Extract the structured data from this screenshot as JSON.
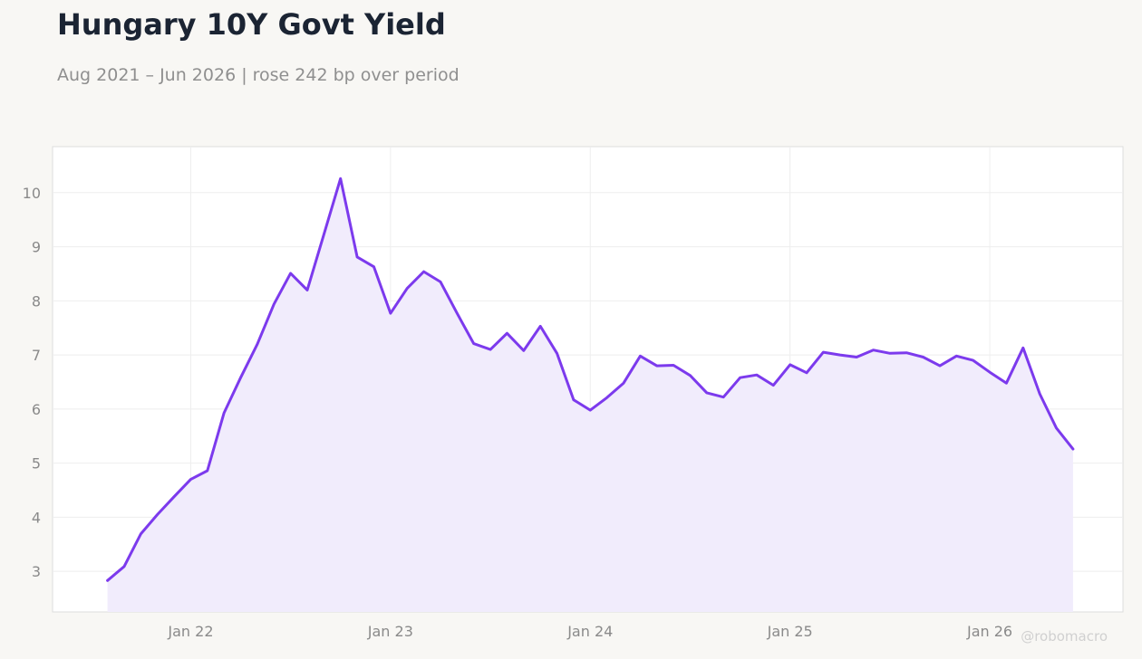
{
  "title": "Hungary 10Y Govt Yield",
  "subtitle": "Aug 2021 – Jun 2026 | rose 242 bp over period",
  "watermark": "@robomacro",
  "colors": {
    "line": "#7c3aed",
    "fill": "#f1ecfc",
    "background": "#f8f7f4",
    "plot_background": "#ffffff",
    "grid": "#eeeeee",
    "title": "#1b2433",
    "muted_text": "#8f8f8f"
  },
  "chart_data": {
    "type": "area",
    "title": "Hungary 10Y Govt Yield",
    "subtitle": "Aug 2021 – Jun 2026 | rose 242 bp over period",
    "xlabel": "",
    "ylabel": "",
    "x_start": "2021-08",
    "x_end": "2026-06",
    "xlim": [
      "2021-05",
      "2026-09"
    ],
    "ylim": [
      2.25,
      10.85
    ],
    "x_ticks": [
      {
        "date": "2022-01",
        "label": "Jan 22"
      },
      {
        "date": "2023-01",
        "label": "Jan 23"
      },
      {
        "date": "2024-01",
        "label": "Jan 24"
      },
      {
        "date": "2025-01",
        "label": "Jan 25"
      },
      {
        "date": "2026-01",
        "label": "Jan 26"
      }
    ],
    "y_ticks": [
      3,
      4,
      5,
      6,
      7,
      8,
      9,
      10
    ],
    "grid": true,
    "legend": "none",
    "series": [
      {
        "x": [
          "2021-08",
          "2021-09",
          "2021-10",
          "2021-11",
          "2021-12",
          "2022-01",
          "2022-02",
          "2022-03",
          "2022-04",
          "2022-05",
          "2022-06",
          "2022-07",
          "2022-08",
          "2022-09",
          "2022-10",
          "2022-11",
          "2022-12",
          "2023-01",
          "2023-02",
          "2023-03",
          "2023-04",
          "2023-05",
          "2023-06",
          "2023-07",
          "2023-08",
          "2023-09",
          "2023-10",
          "2023-11",
          "2023-12",
          "2024-01",
          "2024-02",
          "2024-03",
          "2024-04",
          "2024-05",
          "2024-06",
          "2024-07",
          "2024-08",
          "2024-09",
          "2024-10",
          "2024-11",
          "2024-12",
          "2025-01",
          "2025-02",
          "2025-03",
          "2025-04",
          "2025-05",
          "2025-06",
          "2025-07",
          "2025-08",
          "2025-09",
          "2025-10",
          "2025-11",
          "2025-12",
          "2026-01",
          "2026-02",
          "2026-03",
          "2026-04",
          "2026-05",
          "2026-06"
        ],
        "values": [
          2.83,
          3.09,
          3.69,
          4.05,
          4.38,
          4.7,
          4.86,
          5.93,
          6.58,
          7.2,
          7.94,
          8.51,
          8.2,
          9.23,
          10.26,
          8.81,
          8.63,
          7.77,
          8.23,
          8.54,
          8.35,
          7.77,
          7.21,
          7.1,
          7.4,
          7.08,
          7.53,
          7.03,
          6.17,
          5.98,
          6.21,
          6.48,
          6.98,
          6.8,
          6.81,
          6.62,
          6.3,
          6.22,
          6.58,
          6.63,
          6.44,
          6.82,
          6.67,
          7.05,
          7.0,
          6.96,
          7.09,
          7.03,
          7.04,
          6.96,
          6.8,
          6.98,
          6.9,
          6.68,
          6.48,
          7.13,
          6.28,
          5.65,
          5.26
        ]
      }
    ]
  }
}
